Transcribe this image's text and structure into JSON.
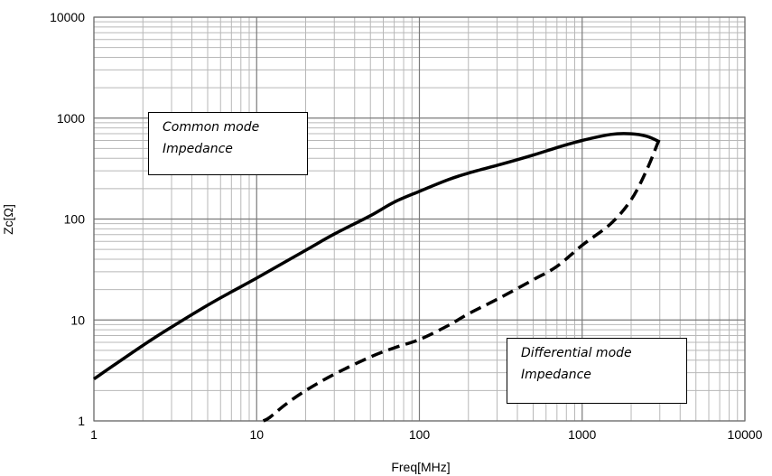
{
  "chart_data": {
    "type": "line",
    "title": "",
    "xlabel": "Freq[MHz]",
    "ylabel": "Zc[Ω]",
    "xscale": "log",
    "yscale": "log",
    "xlim": [
      1,
      10000
    ],
    "ylim": [
      1,
      10000
    ],
    "xticks": [
      "1",
      "10",
      "100",
      "1000",
      "10000"
    ],
    "yticks": [
      "1",
      "10",
      "100",
      "1000",
      "10000"
    ],
    "grid": true,
    "annotations": [
      {
        "id": "common",
        "lines": [
          "Common mode",
          "Impedance"
        ]
      },
      {
        "id": "differential",
        "lines": [
          "Differential mode",
          "Impedance"
        ]
      }
    ],
    "series": [
      {
        "style": "solid",
        "color": "#000000",
        "x": [
          1,
          2,
          3,
          5,
          7,
          10,
          20,
          30,
          50,
          70,
          100,
          150,
          200,
          300,
          500,
          700,
          1000,
          1500,
          2000,
          2500,
          3000
        ],
        "y": [
          2.6,
          5.6,
          8.5,
          14,
          19,
          26,
          49,
          71,
          108,
          147,
          188,
          245,
          285,
          340,
          430,
          510,
          600,
          690,
          700,
          660,
          580
        ]
      },
      {
        "style": "dashed",
        "color": "#000000",
        "x": [
          11,
          12,
          15,
          20,
          30,
          50,
          70,
          100,
          150,
          200,
          300,
          500,
          700,
          1000,
          1500,
          2000,
          2500,
          3000
        ],
        "y": [
          1,
          1.08,
          1.45,
          2,
          2.9,
          4.3,
          5.3,
          6.4,
          8.8,
          11.5,
          16,
          25,
          34,
          55,
          90,
          155,
          310,
          640
        ]
      }
    ]
  }
}
